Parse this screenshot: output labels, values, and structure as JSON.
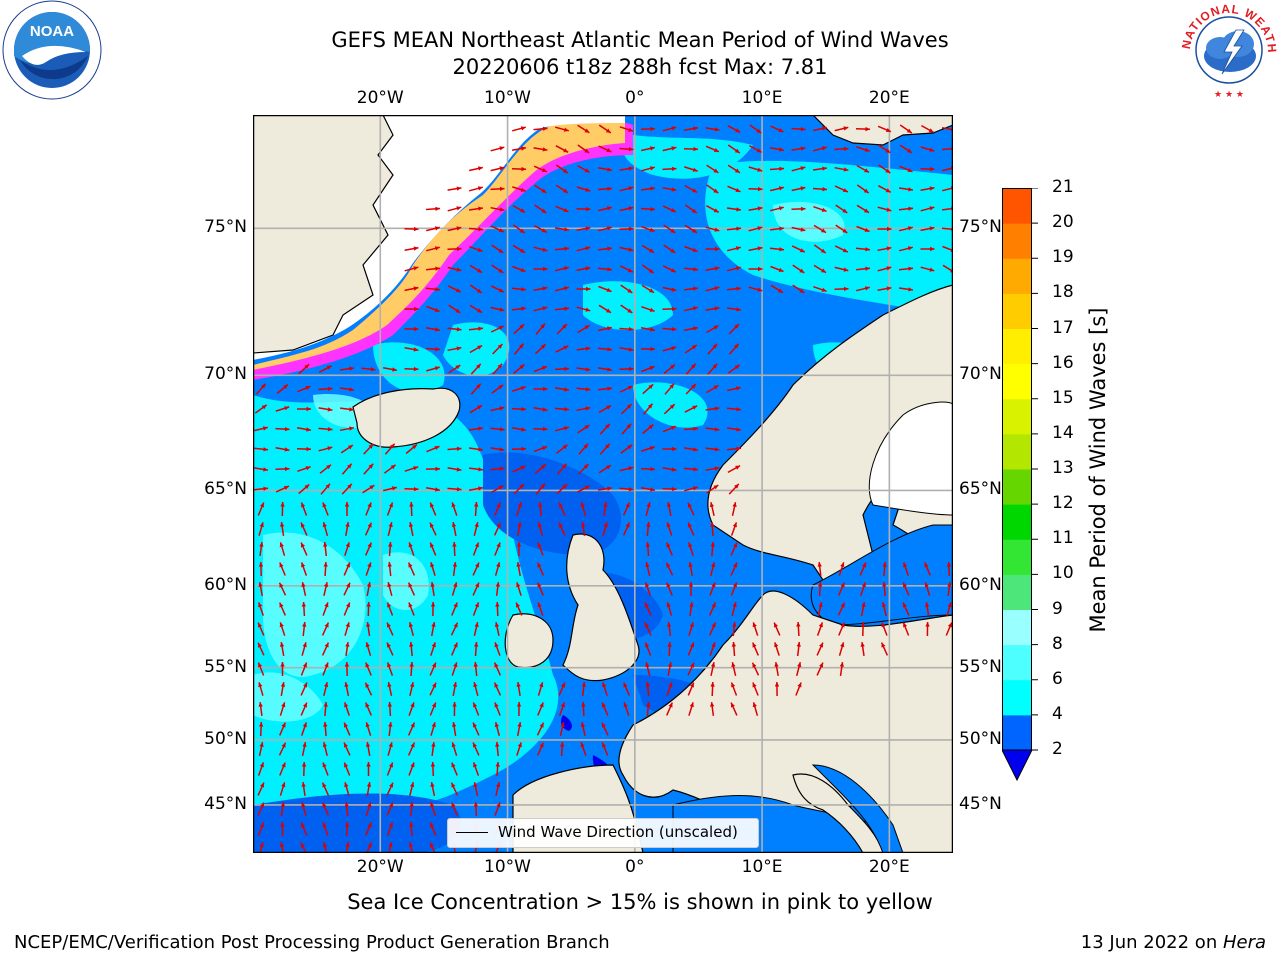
{
  "title_line1": "GEFS MEAN Northeast Atlantic Mean Period of Wind Waves",
  "title_line2": "20220606 t18z 288h fcst   Max: 7.81",
  "legend_label": "Wind Wave Direction (unscaled)",
  "colorbar": {
    "label": "Mean Period of Wind Waves [s]",
    "ticks": [
      "2",
      "4",
      "6",
      "8",
      "9",
      "10",
      "11",
      "12",
      "13",
      "14",
      "15",
      "16",
      "17",
      "18",
      "19",
      "20",
      "21"
    ],
    "colors": [
      "#0064ff",
      "#00ffff",
      "#4dffff",
      "#99ffff",
      "#4de67a",
      "#33e633",
      "#00d600",
      "#66d600",
      "#b3e600",
      "#d9f200",
      "#ffff00",
      "#ffee00",
      "#ffcc00",
      "#ffaa00",
      "#ff7f00",
      "#ff5500",
      "#ff2a00",
      "#ff0000"
    ],
    "under_color": "#0000ee"
  },
  "map": {
    "lon_range": [
      -30,
      25
    ],
    "lat_range": [
      41,
      78
    ],
    "lon_labels": [
      "20°W",
      "10°W",
      "0°",
      "10°E",
      "20°E"
    ],
    "lat_labels": [
      "75°N",
      "70°N",
      "65°N",
      "60°N",
      "55°N",
      "50°N",
      "45°N"
    ],
    "grid": true,
    "colors": {
      "land": "#efebdc",
      "ice": "#ffffff",
      "ice_edge": [
        "#ff33ff",
        "#ff99cc",
        "#ffcc66",
        "#ffee55"
      ],
      "wave_low": "#0080ff",
      "wave_mid": "#00f0ff",
      "wave_high": "#66ffff",
      "arrow": "#dd0000",
      "grid": "#b0b0b0"
    }
  },
  "footnote": "Sea Ice Concentration > 15% is shown in pink to yellow",
  "credit_left": "NCEP/EMC/Verification Post Processing Product Generation Branch",
  "credit_right_date": "13 Jun 2022 on ",
  "credit_right_machine": "Hera",
  "logos": {
    "left": "noaa-logo",
    "right": "nws-logo",
    "nws_text": "NATIONAL WEATHER SERVICE"
  }
}
